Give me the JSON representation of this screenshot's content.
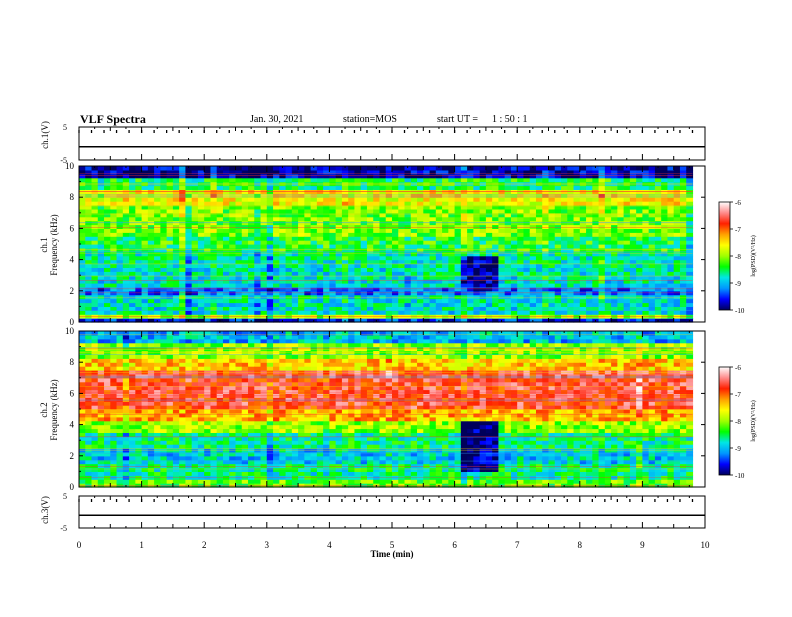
{
  "header": {
    "title": "VLF Spectra",
    "date": "Jan. 30, 2021",
    "station": "station=MOS",
    "start_label": "start UT =",
    "start_time": "1 : 50 : 1"
  },
  "panels": {
    "ch1_waveform": {
      "ylabel": "ch.1(V)",
      "yticks": [
        "5",
        "-5"
      ]
    },
    "ch1_spectrogram": {
      "ylabel_top": "ch.1",
      "ylabel_bottom": "Frequency (kHz)"
    },
    "ch2_spectrogram": {
      "ylabel_top": "ch.2",
      "ylabel_bottom": "Frequency (kHz)"
    },
    "ch3_waveform": {
      "ylabel": "ch.3(V)",
      "yticks": [
        "5",
        "-5"
      ]
    }
  },
  "colorbar": {
    "label": "log(PSD)(V²/Hz)",
    "ticks": [
      "-6",
      "-7",
      "-8",
      "-9",
      "-10"
    ],
    "colors": [
      "#00005a",
      "#0000ff",
      "#0096ff",
      "#00e6e6",
      "#00ff00",
      "#a0ff00",
      "#ffff00",
      "#ffa000",
      "#ff2000",
      "#ff8c8c",
      "#ffffff"
    ]
  },
  "chart_data": [
    {
      "type": "line",
      "panel": "ch.1 waveform",
      "ylabel": "ch.1(V)",
      "ylim": [
        -5,
        5
      ],
      "xlim": [
        0,
        10
      ],
      "series": [
        {
          "name": "ch.1",
          "x": [
            0,
            10
          ],
          "values": [
            -1,
            -1
          ]
        }
      ]
    },
    {
      "type": "heatmap",
      "panel": "ch.1 spectrogram",
      "ylabel": "Frequency (kHz)",
      "xlim": [
        0,
        10
      ],
      "ylim": [
        0,
        10
      ],
      "yticks": [
        0,
        2,
        4,
        6,
        8,
        10
      ],
      "data_end_min": 9.8,
      "color_scale": {
        "label": "log(PSD)(V²/Hz)",
        "range": [
          -10,
          -6
        ]
      },
      "bands": [
        {
          "f": [
            9.2,
            10
          ],
          "logpsd": -9.8
        },
        {
          "f": [
            8.6,
            9.2
          ],
          "logpsd": -8.5
        },
        {
          "f": [
            7.5,
            8.6
          ],
          "logpsd": -7.6
        },
        {
          "f": [
            5.5,
            7.5
          ],
          "logpsd": -8.1
        },
        {
          "f": [
            4.5,
            5.5
          ],
          "logpsd": -8.4
        },
        {
          "f": [
            3.5,
            4.5
          ],
          "logpsd": -8.7
        },
        {
          "f": [
            2.3,
            3.5
          ],
          "logpsd": -8.8
        },
        {
          "f": [
            1.7,
            2.3
          ],
          "logpsd": -9.3
        },
        {
          "f": [
            0.6,
            1.7
          ],
          "logpsd": -8.8
        },
        {
          "f": [
            0.2,
            0.6
          ],
          "logpsd": -7.9
        },
        {
          "f": [
            0,
            0.2
          ],
          "logpsd": -9.6
        }
      ],
      "events": [
        {
          "t": [
            6.1,
            6.7
          ],
          "f": [
            2.0,
            4.2
          ],
          "logpsd": -9.9
        }
      ]
    },
    {
      "type": "heatmap",
      "panel": "ch.2 spectrogram",
      "ylabel": "Frequency (kHz)",
      "xlim": [
        0,
        10
      ],
      "ylim": [
        0,
        10
      ],
      "yticks": [
        0,
        2,
        4,
        6,
        8,
        10
      ],
      "data_end_min": 9.8,
      "color_scale": {
        "label": "log(PSD)(V²/Hz)",
        "range": [
          -10,
          -6
        ]
      },
      "bands": [
        {
          "f": [
            9.3,
            10
          ],
          "logpsd": -9.0
        },
        {
          "f": [
            8.2,
            9.3
          ],
          "logpsd": -8.0
        },
        {
          "f": [
            7.6,
            8.2
          ],
          "logpsd": -7.4
        },
        {
          "f": [
            5.0,
            7.6
          ],
          "logpsd": -6.7
        },
        {
          "f": [
            4.2,
            5.0
          ],
          "logpsd": -7.3
        },
        {
          "f": [
            3.6,
            4.2
          ],
          "logpsd": -8.0
        },
        {
          "f": [
            2.5,
            3.6
          ],
          "logpsd": -8.6
        },
        {
          "f": [
            1.5,
            2.5
          ],
          "logpsd": -8.9
        },
        {
          "f": [
            0.5,
            1.5
          ],
          "logpsd": -8.6
        },
        {
          "f": [
            0,
            0.5
          ],
          "logpsd": -8.2
        }
      ],
      "events": [
        {
          "t": [
            6.1,
            6.7
          ],
          "f": [
            1.0,
            4.2
          ],
          "logpsd": -9.9
        }
      ]
    },
    {
      "type": "line",
      "panel": "ch.3 waveform",
      "ylabel": "ch.3(V)",
      "ylim": [
        -5,
        5
      ],
      "xlim": [
        0,
        10
      ],
      "series": [
        {
          "name": "ch.3",
          "x": [
            0,
            10
          ],
          "values": [
            -1,
            -1
          ]
        }
      ]
    }
  ],
  "xaxis": {
    "label": "Time (min)",
    "ticks": [
      "0",
      "1",
      "2",
      "3",
      "4",
      "5",
      "6",
      "7",
      "8",
      "9",
      "10"
    ]
  }
}
